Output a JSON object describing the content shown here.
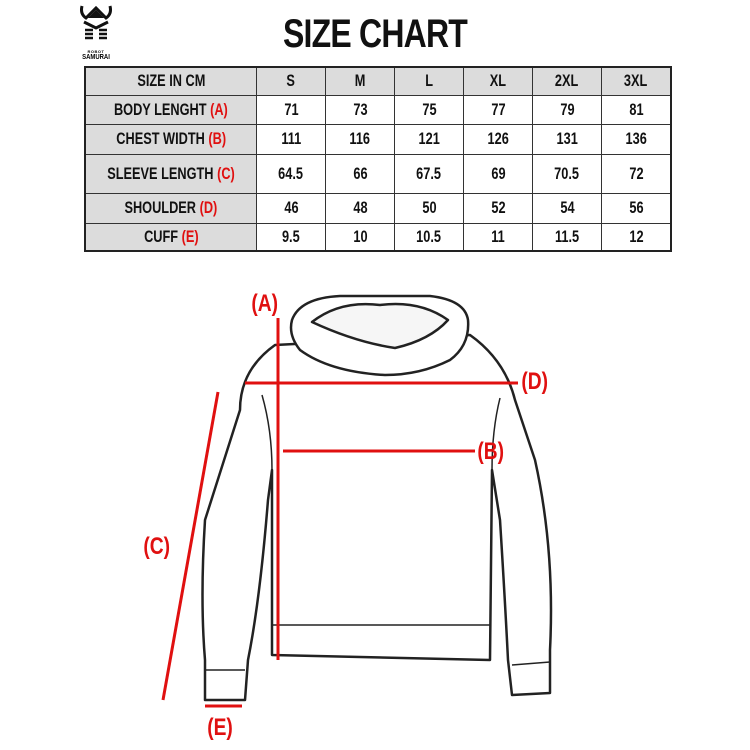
{
  "logo": {
    "sub": "ROBOT",
    "name": "SAMURAI"
  },
  "title": "SIZE CHART",
  "table": {
    "header": [
      "SIZE IN CM",
      "S",
      "M",
      "L",
      "XL",
      "2XL",
      "3XL"
    ],
    "rows": [
      {
        "label": "BODY LENGHT",
        "code": "(A)",
        "values": [
          "71",
          "73",
          "75",
          "77",
          "79",
          "81"
        ]
      },
      {
        "label": "CHEST WIDTH",
        "code": "(B)",
        "values": [
          "111",
          "116",
          "121",
          "126",
          "131",
          "136"
        ]
      },
      {
        "label": "SLEEVE LENGTH",
        "code": "(C)",
        "values": [
          "64.5",
          "66",
          "67.5",
          "69",
          "70.5",
          "72"
        ]
      },
      {
        "label": "SHOULDER",
        "code": "(D)",
        "values": [
          "46",
          "48",
          "50",
          "52",
          "54",
          "56"
        ]
      },
      {
        "label": "CUFF",
        "code": "(E)",
        "values": [
          "9.5",
          "10",
          "10.5",
          "11",
          "11.5",
          "12"
        ]
      }
    ]
  },
  "diagram": {
    "labels": {
      "a": "(A)",
      "b": "(B)",
      "c": "(C)",
      "d": "(D)",
      "e": "(E)"
    }
  },
  "colors": {
    "accent": "#e01010",
    "header_bg": "#dcdcdc"
  }
}
